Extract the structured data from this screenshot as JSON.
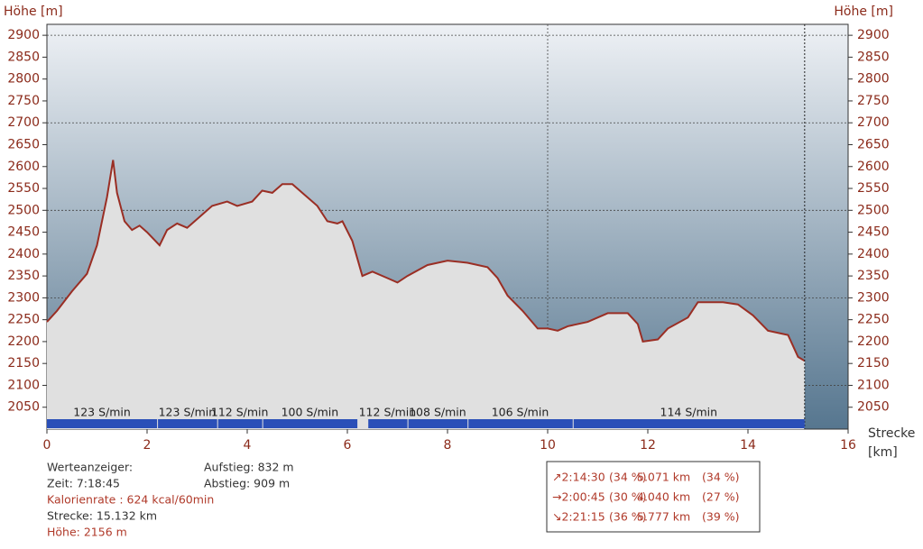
{
  "chart_data": {
    "type": "area",
    "y_label": "Höhe [m]",
    "x_label": "Strecke",
    "x_unit": "[km]",
    "color": "#9a2e24",
    "fill": "#e0e0e0",
    "x": [
      0,
      0.2,
      0.5,
      0.8,
      1.0,
      1.2,
      1.32,
      1.4,
      1.55,
      1.7,
      1.85,
      2.0,
      2.25,
      2.4,
      2.6,
      2.8,
      3.0,
      3.3,
      3.6,
      3.8,
      4.1,
      4.3,
      4.5,
      4.7,
      4.9,
      5.1,
      5.4,
      5.6,
      5.8,
      5.9,
      6.1,
      6.3,
      6.5,
      6.8,
      7.0,
      7.2,
      7.6,
      8.0,
      8.4,
      8.8,
      9.0,
      9.2,
      9.5,
      9.8,
      10.0,
      10.2,
      10.4,
      10.8,
      11.2,
      11.6,
      11.8,
      11.9,
      12.2,
      12.4,
      12.8,
      13.0,
      13.5,
      13.8,
      14.1,
      14.4,
      14.8,
      15.0,
      15.132
    ],
    "values": [
      2245,
      2270,
      2315,
      2355,
      2420,
      2530,
      2615,
      2540,
      2475,
      2455,
      2465,
      2450,
      2420,
      2455,
      2470,
      2460,
      2480,
      2510,
      2520,
      2510,
      2520,
      2545,
      2540,
      2560,
      2560,
      2540,
      2510,
      2475,
      2470,
      2475,
      2430,
      2350,
      2360,
      2345,
      2335,
      2350,
      2375,
      2385,
      2380,
      2370,
      2345,
      2305,
      2270,
      2230,
      2230,
      2225,
      2235,
      2245,
      2265,
      2265,
      2240,
      2200,
      2205,
      2230,
      2255,
      2290,
      2290,
      2285,
      2260,
      2225,
      2215,
      2165,
      2156
    ],
    "xlim": [
      0,
      16
    ],
    "ylim": [
      2000,
      2925
    ],
    "xticks": [
      0,
      2,
      4,
      6,
      8,
      10,
      12,
      14,
      16
    ],
    "yticks": [
      2050,
      2100,
      2150,
      2200,
      2250,
      2300,
      2350,
      2400,
      2450,
      2500,
      2550,
      2600,
      2650,
      2700,
      2750,
      2800,
      2850,
      2900
    ],
    "ygrid": [
      2100,
      2300,
      2500,
      2700,
      2900
    ],
    "xgrid": [
      10
    ],
    "cadence": [
      {
        "label": "123 S/min",
        "start": 0,
        "end": 2.2
      },
      {
        "label": "123 S/min",
        "start": 2.2,
        "end": 3.4
      },
      {
        "label": "112 S/min",
        "start": 3.4,
        "end": 4.3
      },
      {
        "label": "100 S/min",
        "start": 4.3,
        "end": 6.2
      },
      {
        "label": "112 S/min",
        "start": 6.4,
        "end": 7.2
      },
      {
        "label": "108 S/min",
        "start": 7.2,
        "end": 8.4
      },
      {
        "label": "106 S/min",
        "start": 8.4,
        "end": 10.5
      },
      {
        "label": "114 S/min",
        "start": 10.5,
        "end": 15.132
      }
    ],
    "cadence_color": "#2a4fb8"
  },
  "stats": {
    "heading": "Werteanzeiger:",
    "time": "Zeit: 7:18:45",
    "calories": "Kalorienrate : 624 kcal/60min",
    "distance": "Strecke: 15.132 km",
    "height": "Höhe: 2156 m",
    "ascent": "Aufstieg: 832 m",
    "descent": "Abstieg: 909 m"
  },
  "summary": [
    [
      "↗2:14:30",
      "(34 %)",
      "5.071 km",
      "(34 %)"
    ],
    [
      "→2:00:45",
      "(30 %)",
      "4.040 km",
      "(27 %)"
    ],
    [
      "↘2:21:15",
      "(36 %)",
      "5.777 km",
      "(39 %)"
    ]
  ]
}
